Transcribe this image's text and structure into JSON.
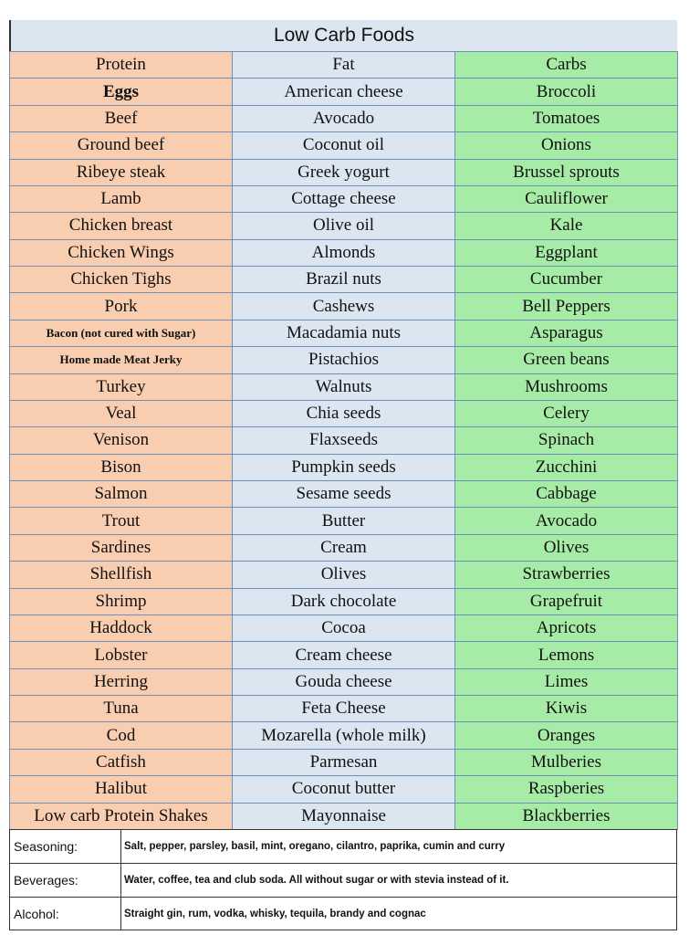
{
  "title": "Low Carb Foods",
  "table": {
    "header": [
      "Protein",
      "Fat",
      "Carbs"
    ],
    "rows": [
      [
        "Eggs",
        "American cheese",
        "Broccoli"
      ],
      [
        "Beef",
        "Avocado",
        "Tomatoes"
      ],
      [
        "Ground beef",
        "Coconut oil",
        "Onions"
      ],
      [
        "Ribeye steak",
        "Greek yogurt",
        "Brussel sprouts"
      ],
      [
        "Lamb",
        "Cottage cheese",
        "Cauliflower"
      ],
      [
        "Chicken breast",
        "Olive oil",
        "Kale"
      ],
      [
        "Chicken Wings",
        "Almonds",
        "Eggplant"
      ],
      [
        "Chicken Tighs",
        "Brazil nuts",
        "Cucumber"
      ],
      [
        "Pork",
        "Cashews",
        "Bell Peppers"
      ],
      [
        "Bacon (not cured with Sugar)",
        "Macadamia nuts",
        "Asparagus"
      ],
      [
        "Home made Meat Jerky",
        "Pistachios",
        "Green beans"
      ],
      [
        "Turkey",
        "Walnuts",
        "Mushrooms"
      ],
      [
        "Veal",
        "Chia seeds",
        "Celery"
      ],
      [
        "Venison",
        "Flaxseeds",
        "Spinach"
      ],
      [
        "Bison",
        "Pumpkin seeds",
        "Zucchini"
      ],
      [
        "Salmon",
        "Sesame seeds",
        "Cabbage"
      ],
      [
        "Trout",
        "Butter",
        "Avocado"
      ],
      [
        "Sardines",
        "Cream",
        "Olives"
      ],
      [
        "Shellfish",
        "Olives",
        "Strawberries"
      ],
      [
        "Shrimp",
        "Dark chocolate",
        "Grapefruit"
      ],
      [
        "Haddock",
        "Cocoa",
        "Apricots"
      ],
      [
        "Lobster",
        "Cream cheese",
        "Lemons"
      ],
      [
        "Herring",
        "Gouda cheese",
        "Limes"
      ],
      [
        "Tuna",
        "Feta Cheese",
        "Kiwis"
      ],
      [
        "Cod",
        "Mozarella (whole milk)",
        "Oranges"
      ],
      [
        "Catfish",
        "Parmesan",
        "Mulberies"
      ],
      [
        "Halibut",
        "Coconut butter",
        "Raspberies"
      ],
      [
        "Low carb Protein Shakes",
        "Mayonnaise",
        "Blackberries"
      ]
    ]
  },
  "footer": [
    {
      "label": "Seasoning:",
      "text": "Salt, pepper, parsley, basil, mint, oregano, cilantro, paprika, cumin and curry"
    },
    {
      "label": "Beverages:",
      "text": "Water, coffee, tea and club soda. All without sugar or with stevia instead of it."
    },
    {
      "label": "Alcohol:",
      "text": "Straight gin, rum, vodka, whisky, tequila, brandy and cognac"
    }
  ]
}
